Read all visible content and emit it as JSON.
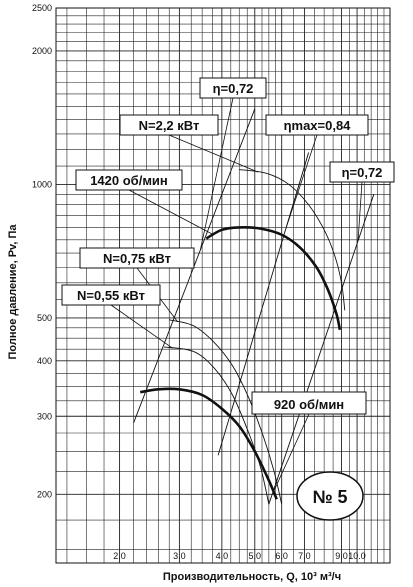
{
  "chart_data": {
    "type": "line",
    "xlabel": "Производительность, Q, 10³ м³/ч",
    "ylabel": "Полное давление, Pv, Па",
    "x_scale": "log",
    "y_scale": "log",
    "xlim": [
      1.3,
      12.5
    ],
    "ylim": [
      140,
      2500
    ],
    "x_ticks": [
      {
        "value": 2.0,
        "label": "2.0"
      },
      {
        "value": 3.0,
        "label": "3.0"
      },
      {
        "value": 4.0,
        "label": "4.0"
      },
      {
        "value": 5.0,
        "label": "5.0"
      },
      {
        "value": 6.0,
        "label": "6.0"
      },
      {
        "value": 7.0,
        "label": "7.0"
      },
      {
        "value": 9.0,
        "label": "9.0"
      },
      {
        "value": 10.0,
        "label": "10.0"
      }
    ],
    "y_ticks": [
      {
        "value": 200,
        "label": "200"
      },
      {
        "value": 300,
        "label": "300"
      },
      {
        "value": 400,
        "label": "400"
      },
      {
        "value": 500,
        "label": "500"
      },
      {
        "value": 1000,
        "label": "1000"
      },
      {
        "value": 2000,
        "label": "2000"
      },
      {
        "value": 2500,
        "label": "2500"
      }
    ],
    "grid": true,
    "series": [
      {
        "name": "1420 об/мин",
        "style": "bold",
        "x": [
          3.6,
          4.0,
          4.5,
          5.2,
          6.0,
          6.8,
          7.6,
          8.2,
          8.7,
          8.9
        ],
        "y": [
          755,
          790,
          800,
          795,
          770,
          720,
          650,
          580,
          510,
          470
        ]
      },
      {
        "name": "920 об/мин",
        "style": "bold",
        "x": [
          2.3,
          2.6,
          3.0,
          3.5,
          4.0,
          4.5,
          5.0,
          5.5,
          5.8
        ],
        "y": [
          340,
          345,
          345,
          335,
          312,
          285,
          250,
          215,
          195
        ]
      },
      {
        "name": "N=2,2 кВт",
        "style": "thin",
        "x": [
          4.5,
          5.4,
          6.3,
          7.2,
          8.0,
          8.6,
          9.0,
          9.2
        ],
        "y": [
          1080,
          1060,
          1000,
          900,
          790,
          690,
          600,
          520
        ]
      },
      {
        "name": "N=0,75 кВт",
        "style": "thin",
        "x": [
          2.8,
          3.3,
          3.8,
          4.3,
          4.8,
          5.3,
          5.7,
          6.0
        ],
        "y": [
          495,
          480,
          440,
          390,
          330,
          270,
          225,
          190
        ]
      },
      {
        "name": "N=0,55 кВт",
        "style": "thin",
        "x": [
          2.7,
          3.3,
          3.8,
          4.3,
          4.8,
          5.2,
          5.5
        ],
        "y": [
          430,
          420,
          385,
          335,
          275,
          230,
          190
        ]
      },
      {
        "name": "η=0,72",
        "style": "thin",
        "x": [
          2.2,
          5.0
        ],
        "y": [
          290,
          1480
        ]
      },
      {
        "name": "ηmax=0,84",
        "style": "thin",
        "x": [
          3.9,
          7.2
        ],
        "y": [
          245,
          1180
        ]
      },
      {
        "name": "η=0,72",
        "style": "thin",
        "x": [
          5.5,
          11.2
        ],
        "y": [
          190,
          950
        ]
      }
    ],
    "annotations": [
      {
        "label": "η=0,72",
        "target": "upper-left efficiency line"
      },
      {
        "label": "N=2,2 кВт",
        "target": "power curve 2.2 kW"
      },
      {
        "label": "ηmax=0,84",
        "target": "max efficiency line"
      },
      {
        "label": "1420 об/мин",
        "target": "1420 rpm curve"
      },
      {
        "label": "η=0,72",
        "target": "right efficiency line"
      },
      {
        "label": "N=0,75 кВт",
        "target": "power curve 0.75 kW"
      },
      {
        "label": "N=0,55 кВт",
        "target": "power curve 0.55 kW"
      },
      {
        "label": "920 об/мин",
        "target": "920 rpm curve"
      }
    ],
    "badge": "№ 5"
  }
}
